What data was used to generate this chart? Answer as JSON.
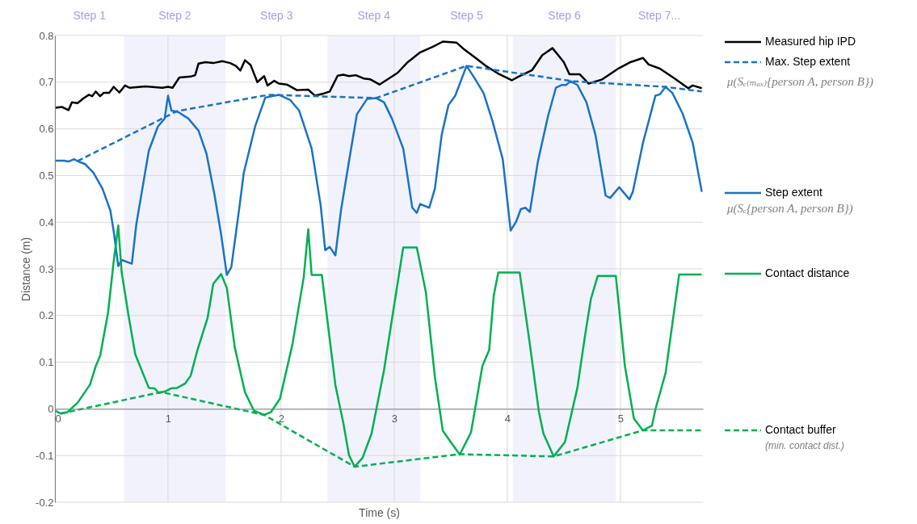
{
  "chart_data": {
    "type": "line",
    "xlabel": "Time (s)",
    "ylabel": "Distance (m)",
    "xlim": [
      0,
      5.73
    ],
    "xticks": [
      0,
      1,
      2,
      3,
      4,
      5
    ],
    "ylim": [
      -0.2,
      0.8
    ],
    "yticks": [
      -0.2,
      -0.1,
      0,
      0.1,
      0.2,
      0.3,
      0.4,
      0.5,
      0.6,
      0.7,
      0.8
    ],
    "grid": true,
    "legend": "right",
    "series": [
      {
        "name": "Measured hip IPD",
        "color": "#000000",
        "line_style": "solid",
        "x": [
          0,
          0.06,
          0.12,
          0.15,
          0.2,
          0.25,
          0.3,
          0.33,
          0.36,
          0.4,
          0.43,
          0.48,
          0.52,
          0.57,
          0.62,
          0.66,
          0.8,
          0.95,
          1.0,
          1.04,
          1.1,
          1.2,
          1.24,
          1.27,
          1.33,
          1.4,
          1.48,
          1.55,
          1.6,
          1.64,
          1.68,
          1.73,
          1.79,
          1.85,
          1.88,
          1.94,
          1.98,
          2.05,
          2.14,
          2.24,
          2.3,
          2.38,
          2.43,
          2.5,
          2.55,
          2.6,
          2.66,
          2.73,
          2.79,
          2.87,
          3.03,
          3.12,
          3.23,
          3.35,
          3.43,
          3.55,
          3.62,
          3.72,
          3.81,
          3.93,
          4.04,
          4.1,
          4.22,
          4.31,
          4.4,
          4.46,
          4.5,
          4.55,
          4.64,
          4.72,
          4.84,
          4.98,
          5.09,
          5.2,
          5.25,
          5.35,
          5.48,
          5.6,
          5.64,
          5.72
        ],
        "values": [
          0.645,
          0.647,
          0.64,
          0.657,
          0.655,
          0.665,
          0.673,
          0.67,
          0.68,
          0.67,
          0.677,
          0.677,
          0.69,
          0.678,
          0.693,
          0.688,
          0.691,
          0.688,
          0.69,
          0.688,
          0.71,
          0.712,
          0.715,
          0.74,
          0.743,
          0.741,
          0.745,
          0.741,
          0.735,
          0.725,
          0.747,
          0.737,
          0.7,
          0.713,
          0.693,
          0.703,
          0.697,
          0.695,
          0.683,
          0.684,
          0.671,
          0.676,
          0.68,
          0.714,
          0.716,
          0.713,
          0.715,
          0.708,
          0.706,
          0.695,
          0.72,
          0.743,
          0.764,
          0.777,
          0.787,
          0.785,
          0.77,
          0.752,
          0.735,
          0.717,
          0.704,
          0.712,
          0.726,
          0.758,
          0.773,
          0.755,
          0.743,
          0.717,
          0.717,
          0.697,
          0.706,
          0.729,
          0.743,
          0.752,
          0.738,
          0.729,
          0.708,
          0.687,
          0.693,
          0.687
        ]
      },
      {
        "name": "Max. Step extent",
        "color": "#1a73c6",
        "line_style": "dashed",
        "x": [
          0.2,
          1.08,
          1.89,
          2.84,
          3.64,
          4.58,
          5.4,
          5.72
        ],
        "values": [
          0.531,
          0.638,
          0.673,
          0.666,
          0.735,
          0.702,
          0.69,
          0.68
        ]
      },
      {
        "name": "Step extent",
        "color": "#1a73c6",
        "line_style": "solid",
        "x": [
          0,
          0.08,
          0.12,
          0.17,
          0.2,
          0.27,
          0.34,
          0.42,
          0.49,
          0.52,
          0.56,
          0.59,
          0.68,
          0.72,
          0.83,
          0.91,
          0.97,
          1.0,
          1.03,
          1.09,
          1.18,
          1.27,
          1.34,
          1.41,
          1.47,
          1.52,
          1.56,
          1.63,
          1.67,
          1.77,
          1.86,
          1.98,
          2.08,
          2.16,
          2.27,
          2.35,
          2.39,
          2.43,
          2.48,
          2.53,
          2.6,
          2.67,
          2.76,
          2.84,
          2.91,
          2.98,
          3.08,
          3.16,
          3.2,
          3.23,
          3.31,
          3.36,
          3.42,
          3.48,
          3.54,
          3.64,
          3.71,
          3.79,
          3.87,
          3.96,
          4.03,
          4.08,
          4.12,
          4.16,
          4.2,
          4.27,
          4.36,
          4.43,
          4.48,
          4.52,
          4.56,
          4.62,
          4.7,
          4.78,
          4.87,
          4.91,
          4.99,
          5.08,
          5.11,
          5.2,
          5.31,
          5.35,
          5.4,
          5.46,
          5.55,
          5.64,
          5.72
        ],
        "values": [
          0.532,
          0.532,
          0.53,
          0.535,
          0.531,
          0.524,
          0.506,
          0.472,
          0.425,
          0.38,
          0.306,
          0.319,
          0.311,
          0.396,
          0.553,
          0.605,
          0.622,
          0.671,
          0.639,
          0.636,
          0.622,
          0.596,
          0.547,
          0.46,
          0.373,
          0.287,
          0.304,
          0.43,
          0.506,
          0.605,
          0.667,
          0.673,
          0.662,
          0.639,
          0.558,
          0.436,
          0.34,
          0.347,
          0.329,
          0.426,
          0.53,
          0.631,
          0.664,
          0.666,
          0.657,
          0.622,
          0.558,
          0.431,
          0.42,
          0.439,
          0.431,
          0.472,
          0.587,
          0.651,
          0.671,
          0.735,
          0.709,
          0.677,
          0.616,
          0.535,
          0.382,
          0.402,
          0.428,
          0.431,
          0.422,
          0.529,
          0.627,
          0.688,
          0.694,
          0.694,
          0.702,
          0.694,
          0.657,
          0.587,
          0.457,
          0.452,
          0.475,
          0.449,
          0.465,
          0.57,
          0.671,
          0.674,
          0.69,
          0.677,
          0.633,
          0.57,
          0.465
        ]
      },
      {
        "name": "Contact distance",
        "color": "#00b050",
        "line_style": "solid",
        "x": [
          0,
          0.05,
          0.11,
          0.2,
          0.31,
          0.36,
          0.4,
          0.47,
          0.52,
          0.56,
          0.59,
          0.65,
          0.71,
          0.83,
          0.88,
          0.92,
          0.98,
          1.03,
          1.08,
          1.15,
          1.2,
          1.26,
          1.35,
          1.4,
          1.47,
          1.52,
          1.59,
          1.68,
          1.76,
          1.85,
          1.91,
          1.99,
          2.1,
          2.2,
          2.24,
          2.27,
          2.36,
          2.48,
          2.55,
          2.6,
          2.65,
          2.72,
          2.8,
          2.91,
          2.99,
          3.08,
          3.2,
          3.28,
          3.36,
          3.43,
          3.5,
          3.58,
          3.68,
          3.78,
          3.84,
          3.88,
          3.92,
          4.11,
          4.2,
          4.28,
          4.32,
          4.41,
          4.51,
          4.62,
          4.69,
          4.74,
          4.8,
          4.96,
          5.04,
          5.12,
          5.2,
          5.28,
          5.31,
          5.4,
          5.52,
          5.72
        ],
        "values": [
          -0.004,
          -0.01,
          -0.007,
          0.013,
          0.052,
          0.091,
          0.114,
          0.207,
          0.317,
          0.393,
          0.293,
          0.201,
          0.117,
          0.045,
          0.044,
          0.034,
          0.038,
          0.044,
          0.045,
          0.054,
          0.071,
          0.126,
          0.195,
          0.268,
          0.289,
          0.259,
          0.132,
          0.036,
          -0.004,
          -0.013,
          -0.007,
          0.022,
          0.138,
          0.282,
          0.385,
          0.287,
          0.287,
          0.051,
          -0.03,
          -0.099,
          -0.124,
          -0.105,
          -0.053,
          0.083,
          0.207,
          0.346,
          0.346,
          0.25,
          0.068,
          -0.047,
          -0.071,
          -0.098,
          -0.05,
          0.092,
          0.126,
          0.242,
          0.292,
          0.292,
          0.138,
          -0.007,
          -0.053,
          -0.102,
          -0.071,
          0.045,
          0.161,
          0.236,
          0.285,
          0.285,
          0.092,
          -0.021,
          -0.046,
          -0.036,
          -0.001,
          0.077,
          0.288,
          0.288
        ]
      },
      {
        "name": "Contact buffer",
        "color": "#00b050",
        "line_style": "dashed",
        "x": [
          0.05,
          0.94,
          1.85,
          2.65,
          3.58,
          4.41,
          5.2,
          5.72
        ],
        "values": [
          -0.01,
          0.036,
          -0.013,
          -0.124,
          -0.097,
          -0.102,
          -0.046,
          -0.046
        ]
      }
    ],
    "bands": [
      {
        "axis": "x",
        "from": 0.61,
        "to": 1.51,
        "label": "Step 2",
        "color": "#f2f2fc"
      },
      {
        "axis": "x",
        "from": 2.41,
        "to": 3.23,
        "label": "Step 4",
        "color": "#f2f2fc"
      },
      {
        "axis": "x",
        "from": 4.05,
        "to": 4.96,
        "label": "Step 6",
        "color": "#f2f2fc"
      }
    ],
    "annotations": [
      "Step 1",
      "Step 3",
      "Step 5",
      "Step 7...",
      "μ(Sₑ₍ₘₐₓ₎{person A, person B})",
      "μ(Sₑ{person A, person B})",
      "(min. contact dist.)"
    ]
  }
}
